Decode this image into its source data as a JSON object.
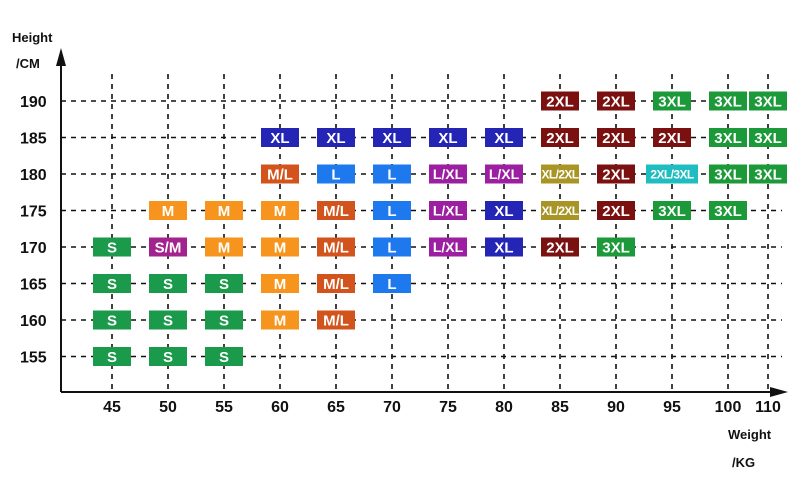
{
  "chart_data": {
    "type": "table",
    "title": "",
    "ylabel": "Height",
    "yunit": "/CM",
    "xlabel": "Weight",
    "xunit": "/KG",
    "x_ticks": [
      45,
      50,
      55,
      60,
      65,
      70,
      75,
      80,
      85,
      90,
      95,
      100,
      110
    ],
    "y_ticks": [
      190,
      185,
      180,
      175,
      170,
      165,
      160,
      155
    ],
    "grid": true,
    "size_colors": {
      "S": "#1a9a4a",
      "S/M": "#a3238e",
      "M": "#f7941d",
      "M/L": "#d2531b",
      "L": "#1e78ee",
      "L/XL": "#9b1fa0",
      "XL": "#2424b5",
      "XL/2XL": "#a89526",
      "2XL": "#7b1010",
      "2XL/3XL": "#1fbcc0",
      "3XL": "#1c9a3a"
    },
    "cells": [
      {
        "weight": 45,
        "height": 170,
        "size": "S"
      },
      {
        "weight": 45,
        "height": 165,
        "size": "S"
      },
      {
        "weight": 45,
        "height": 160,
        "size": "S"
      },
      {
        "weight": 45,
        "height": 155,
        "size": "S"
      },
      {
        "weight": 50,
        "height": 175,
        "size": "M"
      },
      {
        "weight": 50,
        "height": 170,
        "size": "S/M"
      },
      {
        "weight": 50,
        "height": 165,
        "size": "S"
      },
      {
        "weight": 50,
        "height": 160,
        "size": "S"
      },
      {
        "weight": 50,
        "height": 155,
        "size": "S"
      },
      {
        "weight": 55,
        "height": 175,
        "size": "M"
      },
      {
        "weight": 55,
        "height": 170,
        "size": "M"
      },
      {
        "weight": 55,
        "height": 165,
        "size": "S"
      },
      {
        "weight": 55,
        "height": 160,
        "size": "S"
      },
      {
        "weight": 55,
        "height": 155,
        "size": "S"
      },
      {
        "weight": 60,
        "height": 185,
        "size": "XL"
      },
      {
        "weight": 60,
        "height": 180,
        "size": "M/L"
      },
      {
        "weight": 60,
        "height": 175,
        "size": "M"
      },
      {
        "weight": 60,
        "height": 170,
        "size": "M"
      },
      {
        "weight": 60,
        "height": 165,
        "size": "M"
      },
      {
        "weight": 60,
        "height": 160,
        "size": "M"
      },
      {
        "weight": 65,
        "height": 185,
        "size": "XL"
      },
      {
        "weight": 65,
        "height": 180,
        "size": "L"
      },
      {
        "weight": 65,
        "height": 175,
        "size": "M/L"
      },
      {
        "weight": 65,
        "height": 170,
        "size": "M/L"
      },
      {
        "weight": 65,
        "height": 165,
        "size": "M/L"
      },
      {
        "weight": 65,
        "height": 160,
        "size": "M/L"
      },
      {
        "weight": 70,
        "height": 185,
        "size": "XL"
      },
      {
        "weight": 70,
        "height": 180,
        "size": "L"
      },
      {
        "weight": 70,
        "height": 175,
        "size": "L"
      },
      {
        "weight": 70,
        "height": 170,
        "size": "L"
      },
      {
        "weight": 70,
        "height": 165,
        "size": "L"
      },
      {
        "weight": 75,
        "height": 185,
        "size": "XL"
      },
      {
        "weight": 75,
        "height": 180,
        "size": "L/XL"
      },
      {
        "weight": 75,
        "height": 175,
        "size": "L/XL"
      },
      {
        "weight": 75,
        "height": 170,
        "size": "L/XL"
      },
      {
        "weight": 80,
        "height": 185,
        "size": "XL"
      },
      {
        "weight": 80,
        "height": 180,
        "size": "L/XL"
      },
      {
        "weight": 80,
        "height": 175,
        "size": "XL"
      },
      {
        "weight": 80,
        "height": 170,
        "size": "XL"
      },
      {
        "weight": 85,
        "height": 190,
        "size": "2XL"
      },
      {
        "weight": 85,
        "height": 185,
        "size": "2XL"
      },
      {
        "weight": 85,
        "height": 180,
        "size": "XL/2XL"
      },
      {
        "weight": 85,
        "height": 175,
        "size": "XL/2XL"
      },
      {
        "weight": 85,
        "height": 170,
        "size": "2XL"
      },
      {
        "weight": 90,
        "height": 190,
        "size": "2XL"
      },
      {
        "weight": 90,
        "height": 185,
        "size": "2XL"
      },
      {
        "weight": 90,
        "height": 180,
        "size": "2XL"
      },
      {
        "weight": 90,
        "height": 175,
        "size": "2XL"
      },
      {
        "weight": 90,
        "height": 170,
        "size": "3XL"
      },
      {
        "weight": 95,
        "height": 190,
        "size": "3XL"
      },
      {
        "weight": 95,
        "height": 185,
        "size": "2XL"
      },
      {
        "weight": 95,
        "height": 180,
        "size": "2XL/3XL"
      },
      {
        "weight": 95,
        "height": 175,
        "size": "3XL"
      },
      {
        "weight": 100,
        "height": 190,
        "size": "3XL"
      },
      {
        "weight": 100,
        "height": 185,
        "size": "3XL"
      },
      {
        "weight": 100,
        "height": 180,
        "size": "3XL"
      },
      {
        "weight": 100,
        "height": 175,
        "size": "3XL"
      },
      {
        "weight": 110,
        "height": 190,
        "size": "3XL"
      },
      {
        "weight": 110,
        "height": 185,
        "size": "3XL"
      },
      {
        "weight": 110,
        "height": 180,
        "size": "3XL"
      }
    ]
  }
}
